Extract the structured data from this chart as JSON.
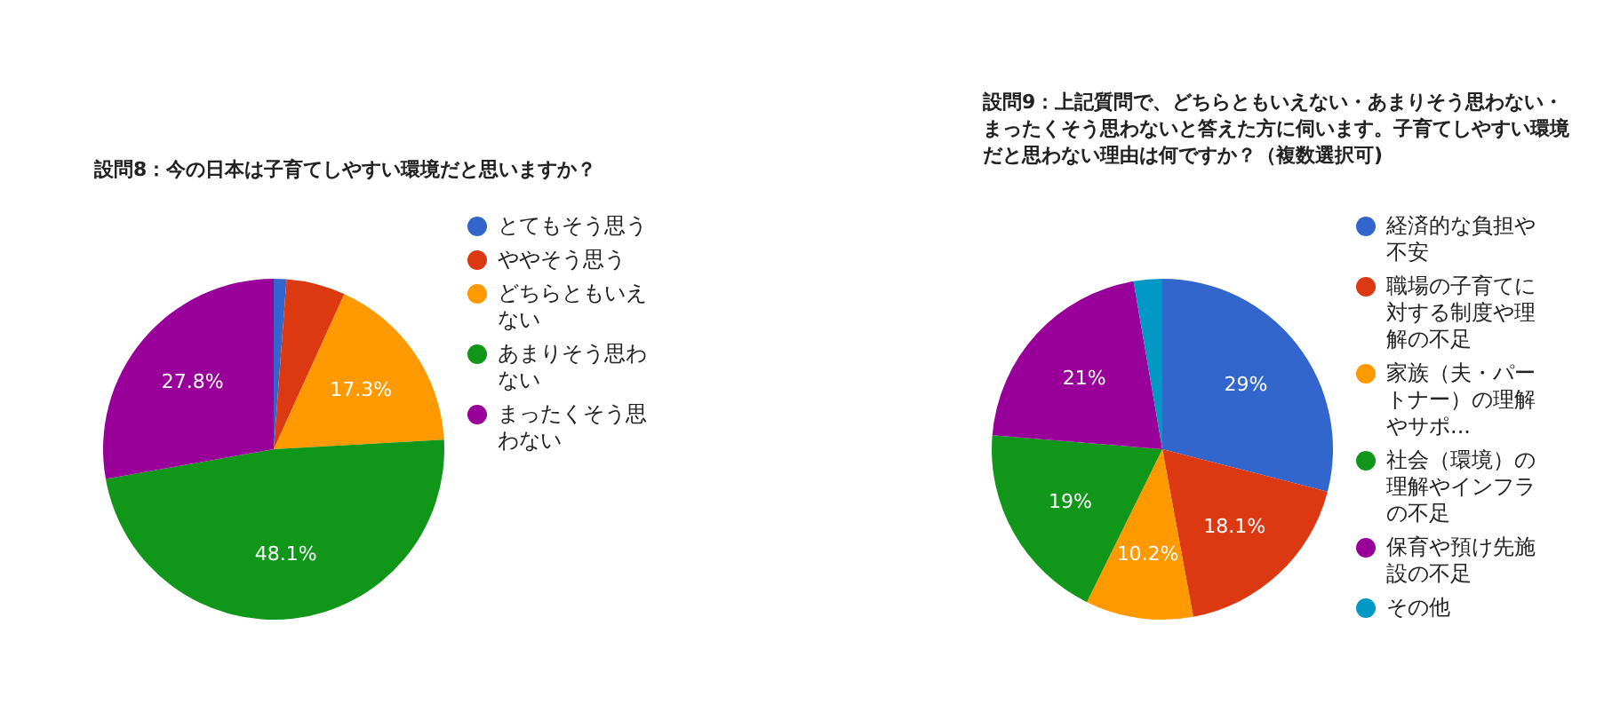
{
  "chart_data": [
    {
      "type": "pie",
      "title": "設問8：今の日本は子育てしやすい環境だと思いますか？",
      "categories": [
        "とてもそう思う",
        "ややそう思う",
        "どちらともいえない",
        "あまりそう思わない",
        "まったくそう思わない"
      ],
      "values": [
        1.2,
        5.6,
        17.3,
        48.1,
        27.8
      ],
      "colors": [
        "#3366cc",
        "#dc3912",
        "#ff9900",
        "#109618",
        "#990099"
      ],
      "value_labels": [
        null,
        null,
        "17.3%",
        "48.1%",
        "27.8%"
      ],
      "legend": "right"
    },
    {
      "type": "pie",
      "title": "設問9：上記質問で、どちらともいえない・あまりそう思わない・まったくそう思わないと答えた方に伺います。子育てしやすい環境だと思わない理由は何ですか？（複数選択可)",
      "categories": [
        "経済的な負担や不安",
        "職場の子育てに対する制度や理解の不足",
        "家族（夫・パートナー）の理解やサポ...",
        "社会（環境）の理解やインフラの不足",
        "保育や預け先施設の不足",
        "その他"
      ],
      "values": [
        29,
        18.1,
        10.2,
        19,
        21,
        2.7
      ],
      "colors": [
        "#3366cc",
        "#dc3912",
        "#ff9900",
        "#109618",
        "#990099",
        "#0099c6"
      ],
      "value_labels": [
        "29%",
        "18.1%",
        "10.2%",
        "19%",
        "21%",
        null
      ],
      "legend": "right"
    }
  ]
}
